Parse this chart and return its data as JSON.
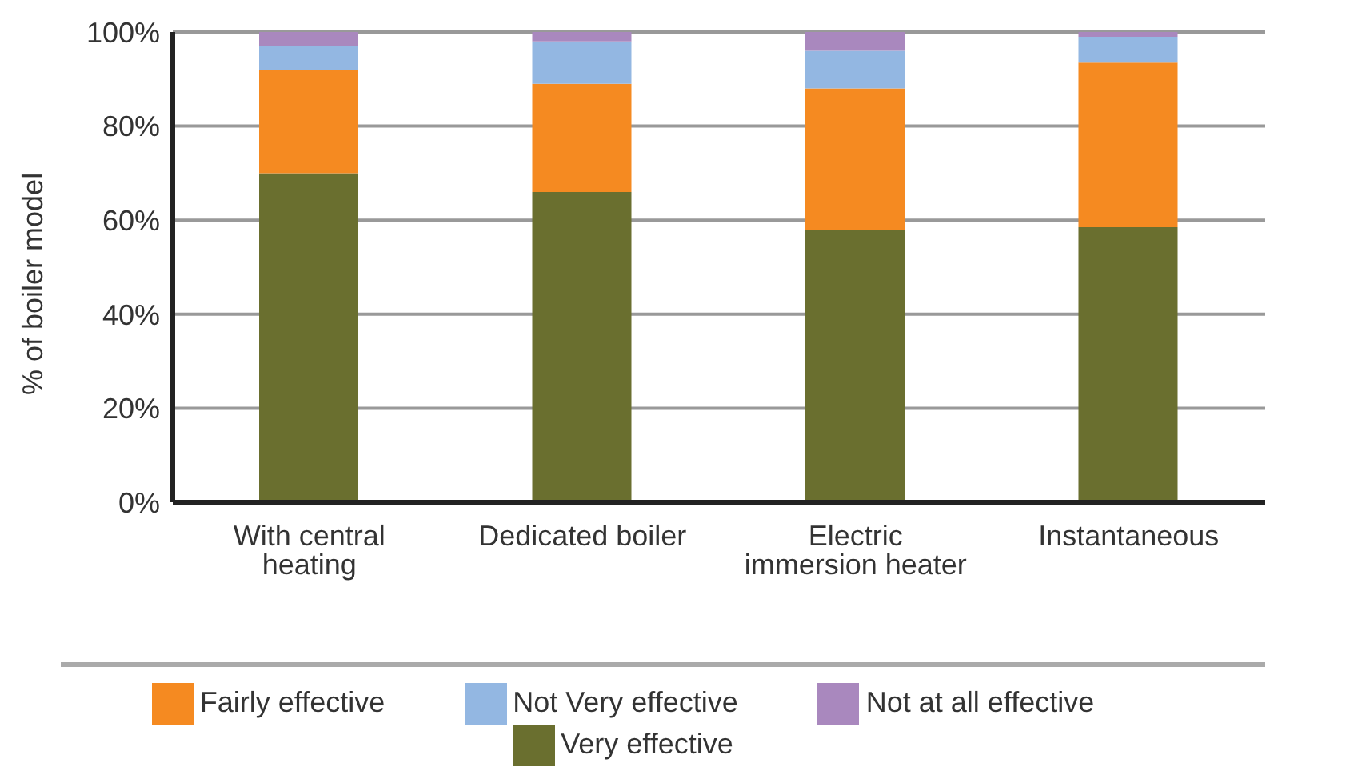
{
  "chart_data": {
    "type": "bar",
    "stacked": true,
    "ylabel": "% of boiler model",
    "categories": [
      "With central heating",
      "Dedicated boiler",
      "Electric immersion heater",
      "Instantaneous"
    ],
    "series": [
      {
        "name": "Very effective",
        "color": "#6a6f2f",
        "values": [
          70,
          66,
          58,
          58.5
        ]
      },
      {
        "name": "Fairly effective",
        "color": "#f58a21",
        "values": [
          22,
          23,
          30,
          35
        ]
      },
      {
        "name": "Not Very effective",
        "color": "#93b7e2",
        "values": [
          5,
          9,
          8,
          5.5
        ]
      },
      {
        "name": "Not at all effective",
        "color": "#a988be",
        "values": [
          3,
          2,
          4,
          1
        ]
      }
    ],
    "ylim": [
      0,
      100
    ],
    "yticks": [
      {
        "value": 0,
        "label": "0%"
      },
      {
        "value": 20,
        "label": "20%"
      },
      {
        "value": 40,
        "label": "40%"
      },
      {
        "value": 60,
        "label": "60%"
      },
      {
        "value": 80,
        "label": "80%"
      },
      {
        "value": 100,
        "label": "100%"
      }
    ],
    "grid": "y",
    "legend": "bottom"
  }
}
